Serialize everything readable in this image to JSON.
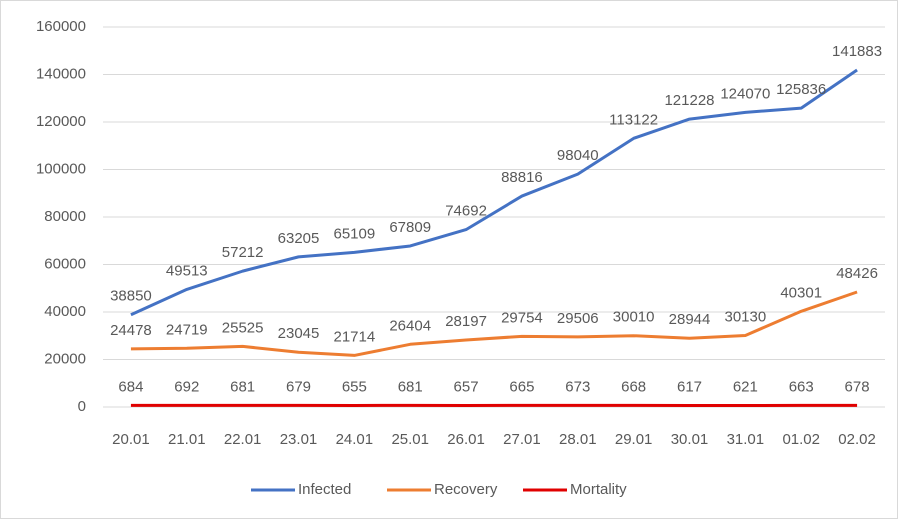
{
  "chart_data": {
    "type": "line",
    "categories": [
      "20.01",
      "21.01",
      "22.01",
      "23.01",
      "24.01",
      "25.01",
      "26.01",
      "27.01",
      "28.01",
      "29.01",
      "30.01",
      "31.01",
      "01.02",
      "02.02"
    ],
    "series": [
      {
        "name": "Infected",
        "color": "#4472c4",
        "values": [
          38850,
          49513,
          57212,
          63205,
          65109,
          67809,
          74692,
          88816,
          98040,
          113122,
          121228,
          124070,
          125836,
          141883
        ]
      },
      {
        "name": "Recovery",
        "color": "#ed7d31",
        "values": [
          24478,
          24719,
          25525,
          23045,
          21714,
          26404,
          28197,
          29754,
          29506,
          30010,
          28944,
          30130,
          40301,
          48426
        ]
      },
      {
        "name": "Mortality",
        "color": "#e00000",
        "values": [
          684,
          692,
          681,
          679,
          655,
          681,
          657,
          665,
          673,
          668,
          617,
          621,
          663,
          678
        ]
      }
    ],
    "ylim": [
      0,
      160000
    ],
    "yticks": [
      0,
      20000,
      40000,
      60000,
      80000,
      100000,
      120000,
      140000,
      160000
    ],
    "grid": true,
    "legend": "bottom"
  }
}
